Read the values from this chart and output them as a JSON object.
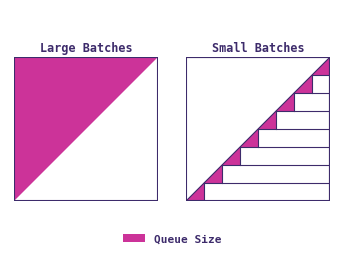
{
  "title_left": "Large Batches",
  "title_right": "Small Batches",
  "legend_label": "Queue Size",
  "pink_color": "#CC3399",
  "border_color": "#3D2B6B",
  "title_color": "#3D2B6B",
  "bg_color": "#FFFFFF",
  "n_steps": 8,
  "title_fontsize": 8.5,
  "legend_fontsize": 8
}
